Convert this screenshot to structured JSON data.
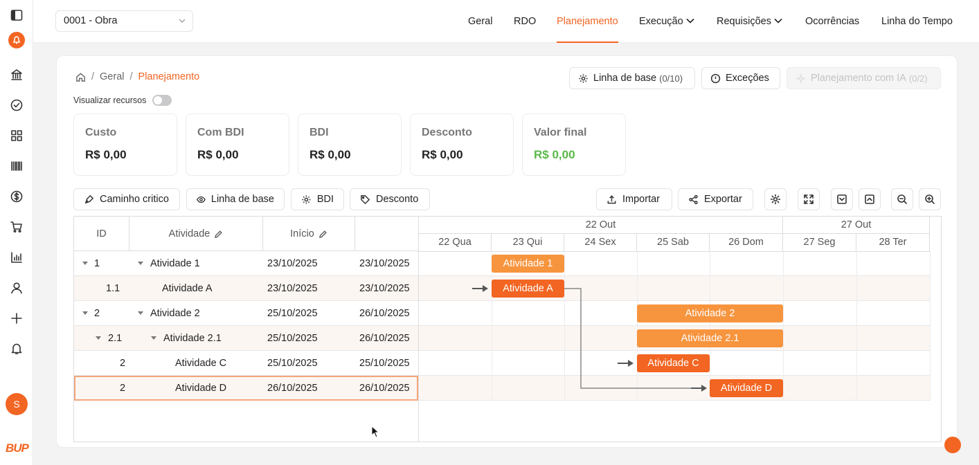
{
  "project": {
    "selected": "0001 - Obra"
  },
  "nav": {
    "items": [
      {
        "label": "Geral"
      },
      {
        "label": "RDO"
      },
      {
        "label": "Planejamento",
        "active": true
      },
      {
        "label": "Execução",
        "dropdown": true
      },
      {
        "label": "Requisições",
        "dropdown": true
      },
      {
        "label": "Ocorrências"
      },
      {
        "label": "Linha do Tempo"
      }
    ]
  },
  "sidebar": {
    "icons": [
      "sidebar-toggle-icon",
      "bell-rocket-icon",
      "bank-icon",
      "check-circle-icon",
      "grid-icon",
      "barcode-icon",
      "dollar-icon",
      "cart-icon",
      "chart-icon",
      "user-icon",
      "plus-icon",
      "bell-icon"
    ],
    "avatar": "S",
    "logo": "BUP"
  },
  "breadcrumb": {
    "home": "home-icon",
    "items": [
      "Geral",
      "Planejamento"
    ]
  },
  "header_buttons": {
    "baseline": {
      "label": "Linha de base",
      "count": "(0/10)"
    },
    "exceptions": {
      "label": "Exceções"
    },
    "ai": {
      "label": "Planejamento com IA",
      "count": "(0/2)"
    }
  },
  "toggle": {
    "label": "Visualizar recursos",
    "on": false
  },
  "stats": [
    {
      "label": "Custo",
      "value": "R$ 0,00"
    },
    {
      "label": "Com BDI",
      "value": "R$ 0,00"
    },
    {
      "label": "BDI",
      "value": "R$ 0,00"
    },
    {
      "label": "Desconto",
      "value": "R$ 0,00"
    },
    {
      "label": "Valor final",
      "value": "R$ 0,00"
    }
  ],
  "toolbar": {
    "critical_path": "Caminho critico",
    "baseline": "Linha de base",
    "bdi": "BDI",
    "discount": "Desconto",
    "import": "Importar",
    "export": "Exportar"
  },
  "gantt": {
    "columns": {
      "id": "ID",
      "activity": "Atividade",
      "start": "Início"
    },
    "weeks": [
      "22 Out",
      "27 Out"
    ],
    "days": [
      "22 Qua",
      "23 Qui",
      "24 Sex",
      "25 Sab",
      "26 Dom",
      "27 Seg",
      "28 Ter"
    ],
    "rows": [
      {
        "id": "1",
        "name": "Atividade 1",
        "start": "23/10/2025",
        "end": "23/10/2025",
        "bar": "Atividade 1"
      },
      {
        "id": "1.1",
        "name": "Atividade A",
        "start": "23/10/2025",
        "end": "23/10/2025",
        "bar": "Atividade A"
      },
      {
        "id": "2",
        "name": "Atividade 2",
        "start": "25/10/2025",
        "end": "26/10/2025",
        "bar": "Atividade 2"
      },
      {
        "id": "2.1",
        "name": "Atividade 2.1",
        "start": "25/10/2025",
        "end": "26/10/2025",
        "bar": "Atividade 2.1"
      },
      {
        "id": "2",
        "name": "Atividade C",
        "start": "25/10/2025",
        "end": "25/10/2025",
        "bar": "Atividade C"
      },
      {
        "id": "2",
        "name": "Atividade D",
        "start": "26/10/2025",
        "end": "26/10/2025",
        "bar": "Atividade D"
      }
    ]
  },
  "colors": {
    "accent": "#f26522",
    "summary": "#f7943e",
    "positive": "#58b947"
  }
}
